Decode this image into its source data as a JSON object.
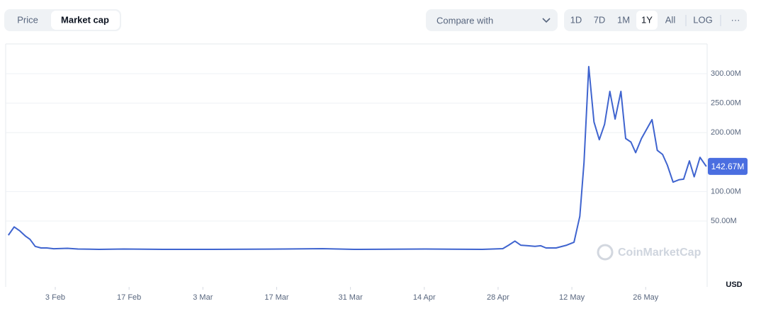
{
  "toolbar": {
    "tabs": [
      "Price",
      "Market cap"
    ],
    "active_tab": 1,
    "compare": "Compare with",
    "ranges": [
      "1D",
      "7D",
      "1M",
      "1Y",
      "All",
      "LOG"
    ],
    "active_range": 3,
    "more": "···"
  },
  "chart_data": {
    "type": "line",
    "watermark": "CoinMarketCap",
    "currency": "USD",
    "x": [
      -8.9,
      -7.8,
      -6.7,
      -5.6,
      -4.8,
      -3.8,
      -2.7,
      -1.6,
      -0.3,
      2.3,
      4.3,
      8.3,
      13,
      20.4,
      29.8,
      43.3,
      50.7,
      56.7,
      70.2,
      81,
      84.9,
      86,
      87.2,
      88.3,
      89.7,
      91,
      92.1,
      93.1,
      95,
      97,
      98.4,
      99.5,
      100.3,
      101.2,
      102.2,
      103.2,
      104.2,
      105.2,
      106.2,
      107.3,
      108.2,
      109.2,
      110.1,
      111.2,
      113.2,
      114.2,
      115.2,
      116.1,
      117.2,
      118.3,
      119.2,
      120.3,
      121.2,
      122.3,
      123.5
    ],
    "series": [
      {
        "name": "Market cap",
        "color": "#3f64cf",
        "values": [
          26,
          40,
          33,
          24,
          19,
          7,
          4.3,
          4.3,
          3,
          3.7,
          2.5,
          1.9,
          2.5,
          1.9,
          1.9,
          2.5,
          3.1,
          1.9,
          2.5,
          1.9,
          3.1,
          9,
          16,
          9,
          8,
          7,
          8,
          4.3,
          4.3,
          9,
          14,
          58,
          149,
          312,
          218,
          188,
          214,
          270,
          223,
          270,
          190,
          184,
          166,
          190,
          222,
          170,
          163,
          145,
          116,
          120,
          121,
          152,
          125,
          158,
          142.67
        ],
        "last_label": "142.67M"
      }
    ],
    "xlim": [
      -9.41,
      123.66
    ],
    "xticks": [
      {
        "value": 0,
        "label": "3 Feb"
      },
      {
        "value": 14,
        "label": "17 Feb"
      },
      {
        "value": 28,
        "label": "3 Mar"
      },
      {
        "value": 42,
        "label": "17 Mar"
      },
      {
        "value": 56,
        "label": "31 Mar"
      },
      {
        "value": 70,
        "label": "14 Apr"
      },
      {
        "value": 84,
        "label": "28 Apr"
      },
      {
        "value": 98,
        "label": "12 May"
      },
      {
        "value": 112,
        "label": "26 May"
      }
    ],
    "ylim": [
      -61.8,
      350.5
    ],
    "yticks": [
      {
        "value": 50,
        "label": "50.00M"
      },
      {
        "value": 100,
        "label": "100.00M"
      },
      {
        "value": 200,
        "label": "200.00M"
      },
      {
        "value": 250,
        "label": "250.00M"
      },
      {
        "value": 300,
        "label": "300.00M"
      }
    ],
    "grid": true
  }
}
